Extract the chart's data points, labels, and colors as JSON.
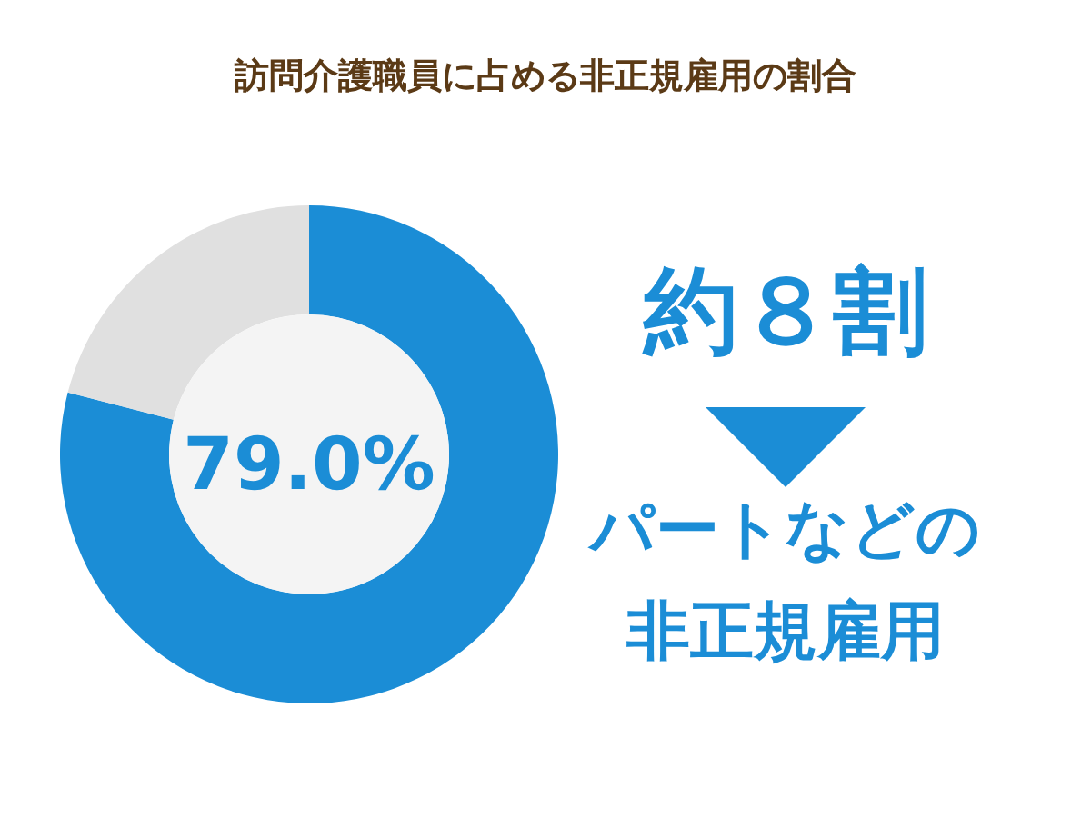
{
  "chart_data": {
    "type": "donut",
    "title": "訪問介護職員に占める非正規雇用の割合",
    "categories": [
      null,
      null
    ],
    "values": [
      79.0,
      21.0
    ],
    "colors": [
      "#1b8dd6",
      "#e0e0e0"
    ],
    "value_labels": [
      "79.0%",
      null
    ],
    "annotations": [
      "約８割",
      "パートなどの",
      "非正規雇用"
    ]
  }
}
